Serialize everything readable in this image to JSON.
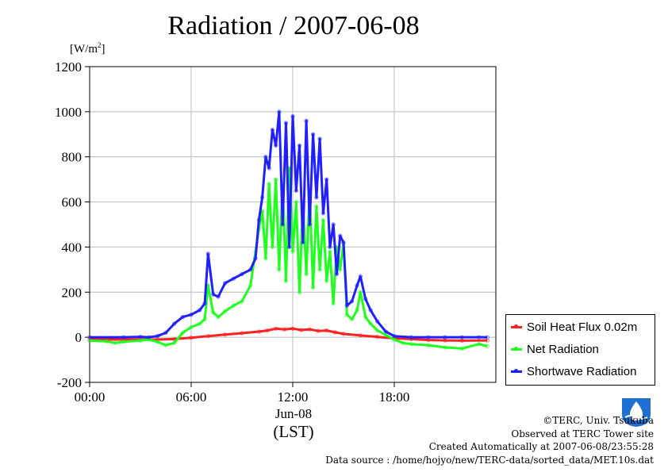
{
  "title": "Radiation / 2007-06-08",
  "unit_label": "[W/m",
  "unit_sup": "2",
  "unit_close": "]",
  "x_date_label": "Jun-08",
  "x_zone_label": "(LST)",
  "footer": {
    "line1": "©TERC, Univ. Tsukuba",
    "line2": "Observed at TERC Tower site",
    "line3": "Created Automatically at 2007-06-08/23:55:28",
    "line4": "Data source : /home/hojyo/new/TERC-data/sorted_data/MET.10s.dat"
  },
  "logo_text": "TERC",
  "colors": {
    "soil": "#ff2020",
    "net": "#20ff20",
    "shortwave": "#2020ff",
    "grid": "#bbbbbb"
  },
  "chart_data": {
    "type": "line",
    "title": "Radiation / 2007-06-08",
    "ylabel": "[W/m2]",
    "xlabel": "(LST)",
    "ylim": [
      -200,
      1200
    ],
    "yticks": [
      -200,
      0,
      200,
      400,
      600,
      800,
      1000,
      1200
    ],
    "xlim": [
      0,
      24
    ],
    "xticks": [
      0,
      6,
      12,
      18
    ],
    "xtick_labels": [
      "00:00",
      "06:00",
      "12:00",
      "18:00"
    ],
    "grid": true,
    "legend_position": "right",
    "series": [
      {
        "name": "Soil Heat Flux 0.02m",
        "color": "#ff2020",
        "x": [
          0,
          2,
          4,
          5,
          6,
          7,
          8,
          9,
          10,
          10.5,
          11,
          11.5,
          12,
          12.5,
          13,
          13.5,
          14,
          14.5,
          15,
          16,
          17,
          18,
          19,
          20,
          21,
          22,
          23.5
        ],
        "y": [
          -10,
          -10,
          -10,
          -8,
          -2,
          5,
          12,
          18,
          25,
          30,
          38,
          35,
          38,
          32,
          35,
          28,
          30,
          22,
          15,
          8,
          2,
          -5,
          -8,
          -12,
          -14,
          -15,
          -14
        ]
      },
      {
        "name": "Net Radiation",
        "color": "#20ff20",
        "x": [
          0,
          1,
          1.5,
          2,
          3,
          3.5,
          4,
          4.5,
          5,
          5.5,
          6,
          6.5,
          6.8,
          7,
          7.3,
          7.6,
          8,
          8.5,
          9,
          9.5,
          9.8,
          10,
          10.2,
          10.4,
          10.6,
          10.8,
          11,
          11.2,
          11.4,
          11.6,
          11.8,
          12,
          12.2,
          12.4,
          12.6,
          12.8,
          13,
          13.2,
          13.4,
          13.6,
          13.8,
          14,
          14.2,
          14.4,
          14.6,
          14.8,
          15,
          15.2,
          15.5,
          15.8,
          16,
          16.3,
          16.6,
          17,
          17.5,
          18,
          18.5,
          19,
          20,
          21,
          22,
          23,
          23.5
        ],
        "y": [
          -15,
          -18,
          -25,
          -20,
          -15,
          -10,
          -20,
          -35,
          -25,
          20,
          45,
          60,
          80,
          230,
          110,
          90,
          115,
          140,
          160,
          230,
          380,
          480,
          560,
          350,
          680,
          400,
          700,
          300,
          680,
          250,
          750,
          380,
          600,
          200,
          600,
          280,
          650,
          220,
          580,
          300,
          520,
          250,
          380,
          150,
          400,
          300,
          420,
          100,
          80,
          120,
          200,
          90,
          60,
          30,
          10,
          -10,
          -25,
          -30,
          -35,
          -45,
          -50,
          -30,
          -40
        ]
      },
      {
        "name": "Shortwave Radiation",
        "color": "#2020ff",
        "x": [
          0,
          2,
          3,
          3.5,
          4,
          4.5,
          5,
          5.5,
          6,
          6.5,
          6.8,
          7,
          7.3,
          7.6,
          8,
          8.5,
          9,
          9.5,
          9.8,
          10,
          10.2,
          10.4,
          10.6,
          10.8,
          11,
          11.2,
          11.4,
          11.6,
          11.8,
          12,
          12.2,
          12.4,
          12.6,
          12.8,
          13,
          13.2,
          13.4,
          13.6,
          13.8,
          14,
          14.2,
          14.4,
          14.6,
          14.8,
          15,
          15.2,
          15.5,
          15.8,
          16,
          16.3,
          16.6,
          17,
          17.5,
          18,
          19,
          20,
          21,
          22,
          23,
          23.5
        ],
        "y": [
          0,
          0,
          2,
          0,
          5,
          20,
          60,
          90,
          100,
          120,
          150,
          370,
          190,
          180,
          240,
          260,
          280,
          300,
          350,
          520,
          620,
          800,
          750,
          920,
          850,
          1000,
          500,
          950,
          400,
          980,
          650,
          850,
          420,
          960,
          500,
          900,
          620,
          880,
          550,
          700,
          400,
          500,
          280,
          450,
          420,
          140,
          160,
          230,
          270,
          170,
          120,
          70,
          25,
          5,
          0,
          0,
          0,
          0,
          0,
          0
        ]
      }
    ]
  }
}
